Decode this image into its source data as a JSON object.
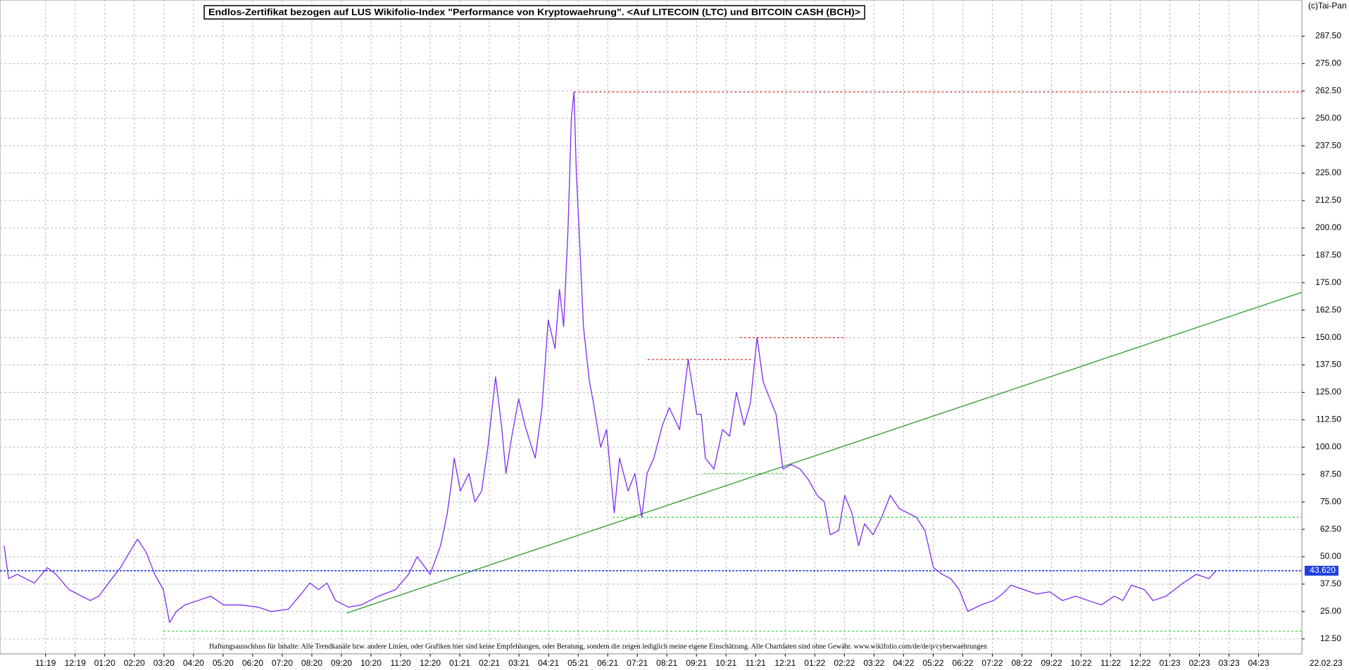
{
  "chart_data": {
    "type": "line",
    "title": "Endlos-Zertifikat bezogen auf LUS Wikifolio-Index \"Performance von Kryptowaehrung\". <Auf LITECOIN (LTC) und BITCOIN CASH (BCH)>",
    "copyright": "(c)Tai-Pan",
    "disclaimer": "Haftungsausschluss für Inhalte: Alle Trendkanäle bzw. andere Linien, oder Grafiken hier sind keine Empfehlungen, oder Beratung, sondern die zeigen lediglich meine eigene Einschätzung. Alle Chartdaten sind ohne Gewähr. www.wikifolio.com/de/de/p/cyberwaehrungen",
    "date_label": "22.02.23",
    "color": "#7b2cf0",
    "grid": true,
    "xlim": [
      -1.54,
      42.46
    ],
    "ylim": [
      5.7,
      304
    ],
    "xticks": [
      {
        "value": 0,
        "label": "11:19"
      },
      {
        "value": 1,
        "label": "12:19"
      },
      {
        "value": 2,
        "label": "01:20"
      },
      {
        "value": 3,
        "label": "02:20"
      },
      {
        "value": 4,
        "label": "03:20"
      },
      {
        "value": 5,
        "label": "04:20"
      },
      {
        "value": 6,
        "label": "05:20"
      },
      {
        "value": 7,
        "label": "06:20"
      },
      {
        "value": 8,
        "label": "07:20"
      },
      {
        "value": 9,
        "label": "08:20"
      },
      {
        "value": 10,
        "label": "09:20"
      },
      {
        "value": 11,
        "label": "10:20"
      },
      {
        "value": 12,
        "label": "11:20"
      },
      {
        "value": 13,
        "label": "12:20"
      },
      {
        "value": 14,
        "label": "01:21"
      },
      {
        "value": 15,
        "label": "02:21"
      },
      {
        "value": 16,
        "label": "03:21"
      },
      {
        "value": 17,
        "label": "04:21"
      },
      {
        "value": 18,
        "label": "05:21"
      },
      {
        "value": 19,
        "label": "06:21"
      },
      {
        "value": 20,
        "label": "07:21"
      },
      {
        "value": 21,
        "label": "08:21"
      },
      {
        "value": 22,
        "label": "09:21"
      },
      {
        "value": 23,
        "label": "10:21"
      },
      {
        "value": 24,
        "label": "11:21"
      },
      {
        "value": 25,
        "label": "12:21"
      },
      {
        "value": 26,
        "label": "01:22"
      },
      {
        "value": 27,
        "label": "02:22"
      },
      {
        "value": 28,
        "label": "03:22"
      },
      {
        "value": 29,
        "label": "04:22"
      },
      {
        "value": 30,
        "label": "05:22"
      },
      {
        "value": 31,
        "label": "06:22"
      },
      {
        "value": 32,
        "label": "07:22"
      },
      {
        "value": 33,
        "label": "08:22"
      },
      {
        "value": 34,
        "label": "09:22"
      },
      {
        "value": 35,
        "label": "10:22"
      },
      {
        "value": 36,
        "label": "11:22"
      },
      {
        "value": 37,
        "label": "12:22"
      },
      {
        "value": 38,
        "label": "01:23"
      },
      {
        "value": 39,
        "label": "02:23"
      },
      {
        "value": 40,
        "label": "03:23"
      },
      {
        "value": 41,
        "label": "04:23"
      }
    ],
    "yticks": [
      {
        "value": 12.5,
        "label": "12.50"
      },
      {
        "value": 25,
        "label": "25.00"
      },
      {
        "value": 37.5,
        "label": "37.50"
      },
      {
        "value": 50,
        "label": "50.00"
      },
      {
        "value": 62.5,
        "label": "62.50"
      },
      {
        "value": 75,
        "label": "75.00"
      },
      {
        "value": 87.5,
        "label": "87.50"
      },
      {
        "value": 100,
        "label": "100.00"
      },
      {
        "value": 112.5,
        "label": "112.50"
      },
      {
        "value": 125,
        "label": "125.00"
      },
      {
        "value": 137.5,
        "label": "137.50"
      },
      {
        "value": 150,
        "label": "150.00"
      },
      {
        "value": 162.5,
        "label": "162.50"
      },
      {
        "value": 175,
        "label": "175.00"
      },
      {
        "value": 187.5,
        "label": "187.50"
      },
      {
        "value": 200,
        "label": "200.00"
      },
      {
        "value": 212.5,
        "label": "212.50"
      },
      {
        "value": 225,
        "label": "225.00"
      },
      {
        "value": 237.5,
        "label": "237.50"
      },
      {
        "value": 250,
        "label": "250.00"
      },
      {
        "value": 262.5,
        "label": "262.50"
      },
      {
        "value": 275,
        "label": "275.00"
      },
      {
        "value": 287.5,
        "label": "287.50"
      }
    ],
    "x": [
      -1.4,
      -1.25,
      -0.96,
      -0.38,
      0.06,
      0.35,
      0.79,
      1.51,
      1.8,
      2.24,
      2.53,
      2.97,
      3.11,
      3.4,
      3.69,
      3.98,
      4.19,
      4.42,
      4.71,
      5.15,
      5.58,
      6.02,
      6.6,
      7.18,
      7.62,
      8.2,
      8.64,
      8.93,
      9.22,
      9.51,
      9.8,
      10.24,
      10.67,
      11.25,
      11.83,
      12.27,
      12.56,
      13.0,
      13.35,
      13.58,
      13.73,
      13.81,
      14.02,
      14.31,
      14.51,
      14.74,
      14.95,
      15.21,
      15.41,
      15.56,
      15.76,
      15.99,
      16.2,
      16.43,
      16.55,
      16.78,
      16.99,
      17.22,
      17.37,
      17.51,
      17.66,
      17.77,
      17.86,
      17.94,
      18.03,
      18.18,
      18.38,
      18.52,
      18.76,
      18.96,
      19.22,
      19.4,
      19.69,
      19.92,
      20.15,
      20.33,
      20.56,
      20.85,
      21.08,
      21.43,
      21.72,
      22.01,
      22.16,
      22.3,
      22.59,
      22.88,
      23.12,
      23.35,
      23.61,
      23.82,
      24.05,
      24.25,
      24.48,
      24.69,
      24.92,
      25.21,
      25.5,
      25.79,
      26.08,
      26.32,
      26.52,
      26.81,
      27.01,
      27.25,
      27.48,
      27.68,
      27.97,
      28.26,
      28.55,
      28.85,
      29.14,
      29.43,
      29.72,
      30.01,
      30.3,
      30.59,
      30.88,
      31.17,
      31.61,
      32.04,
      32.34,
      32.63,
      33.06,
      33.5,
      33.94,
      34.37,
      34.81,
      35.24,
      35.68,
      36.12,
      36.41,
      36.7,
      37.14,
      37.43,
      37.87,
      38.16,
      38.45,
      38.89,
      39.32,
      39.56
    ],
    "values": [
      55,
      40,
      42,
      38,
      45,
      42,
      35,
      30,
      32,
      40,
      45,
      55,
      58,
      52,
      42,
      35,
      20,
      25,
      28,
      30,
      32,
      28,
      28,
      27,
      25,
      26,
      33,
      38,
      35,
      38,
      30,
      27,
      28,
      32,
      35,
      42,
      50,
      42,
      55,
      70,
      85,
      95,
      80,
      88,
      75,
      80,
      100,
      132,
      110,
      88,
      105,
      122,
      110,
      100,
      95,
      118,
      158,
      145,
      172,
      155,
      200,
      250,
      262,
      225,
      200,
      155,
      130,
      120,
      100,
      108,
      70,
      95,
      80,
      88,
      68,
      88,
      95,
      110,
      118,
      108,
      140,
      115,
      115,
      95,
      90,
      108,
      105,
      125,
      110,
      120,
      150,
      130,
      122,
      115,
      90,
      92,
      90,
      85,
      78,
      75,
      60,
      62,
      78,
      70,
      55,
      65,
      60,
      68,
      78,
      72,
      70,
      68,
      62,
      45,
      42,
      40,
      35,
      25,
      28,
      30,
      33,
      37,
      35,
      33,
      34,
      30,
      32,
      30,
      28,
      32,
      30,
      37,
      35,
      30,
      32,
      35,
      38,
      42,
      40,
      43.62
    ],
    "current": {
      "value": 43.62,
      "label": "43.620",
      "color": "#2040e0"
    },
    "lines": [
      {
        "x": [
          17.86,
          42.46
        ],
        "y": [
          262,
          262
        ],
        "color": "#e03030",
        "dashed": true
      },
      {
        "x": [
          23.47,
          27.04
        ],
        "y": [
          150,
          150
        ],
        "color": "#e03030",
        "dashed": true
      },
      {
        "x": [
          20.35,
          23.84
        ],
        "y": [
          140,
          140
        ],
        "color": "#e03030",
        "dashed": true
      },
      {
        "x": [
          22.24,
          24.92
        ],
        "y": [
          88,
          88
        ],
        "color": "#30d030",
        "dashed": true
      },
      {
        "x": [
          19.16,
          42.46
        ],
        "y": [
          68,
          68
        ],
        "color": "#30d030",
        "dashed": true
      },
      {
        "x": [
          3.98,
          42.46
        ],
        "y": [
          16,
          16
        ],
        "color": "#30d030",
        "dashed": true
      },
      {
        "x": [
          10.18,
          42.45
        ],
        "y": [
          24.3,
          170.6
        ],
        "color": "#2a9a2a",
        "dashed": false
      }
    ]
  }
}
